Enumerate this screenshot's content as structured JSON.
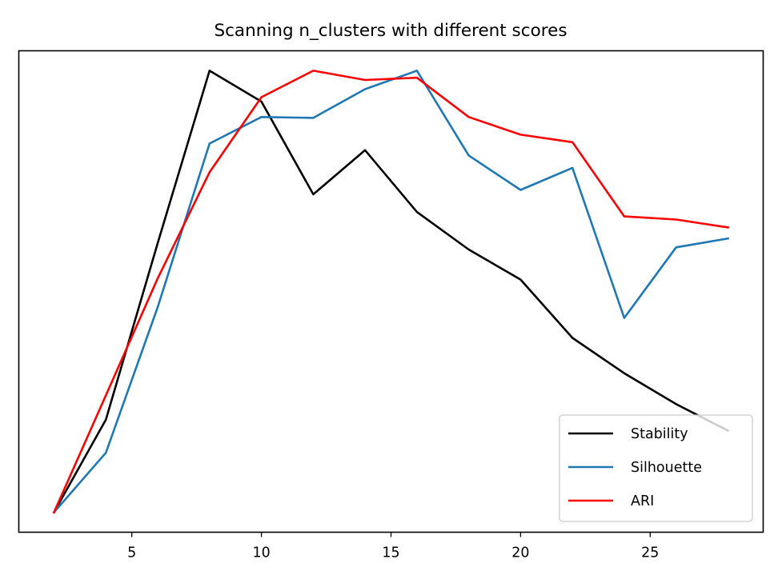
{
  "chart_data": {
    "type": "line",
    "title": "Scanning n_clusters with different scores",
    "xlabel": "",
    "ylabel": "",
    "xlim": [
      0.64,
      29.36
    ],
    "ylim": [
      -0.045,
      1.045
    ],
    "x": [
      2,
      4,
      6,
      8,
      10,
      12,
      14,
      16,
      18,
      20,
      22,
      24,
      26,
      28
    ],
    "x_ticks": [
      5,
      10,
      15,
      20,
      25
    ],
    "y_ticks_visible": false,
    "grid": false,
    "legend_position": "lower right",
    "series": [
      {
        "name": "Stability",
        "color": "#000000",
        "values": [
          0.0,
          0.21,
          0.61,
          1.0,
          0.93,
          0.72,
          0.82,
          0.68,
          0.595,
          0.527,
          0.395,
          0.315,
          0.245,
          0.185
        ]
      },
      {
        "name": "Silhouette",
        "color": "#1f77b4",
        "values": [
          0.0,
          0.135,
          0.465,
          0.835,
          0.895,
          0.893,
          0.958,
          1.0,
          0.808,
          0.73,
          0.78,
          0.44,
          0.6,
          0.62
        ]
      },
      {
        "name": "ARI",
        "color": "#ff0000",
        "values": [
          0.0,
          0.265,
          0.53,
          0.77,
          0.94,
          1.0,
          0.979,
          0.984,
          0.895,
          0.855,
          0.838,
          0.67,
          0.663,
          0.645
        ]
      }
    ]
  }
}
